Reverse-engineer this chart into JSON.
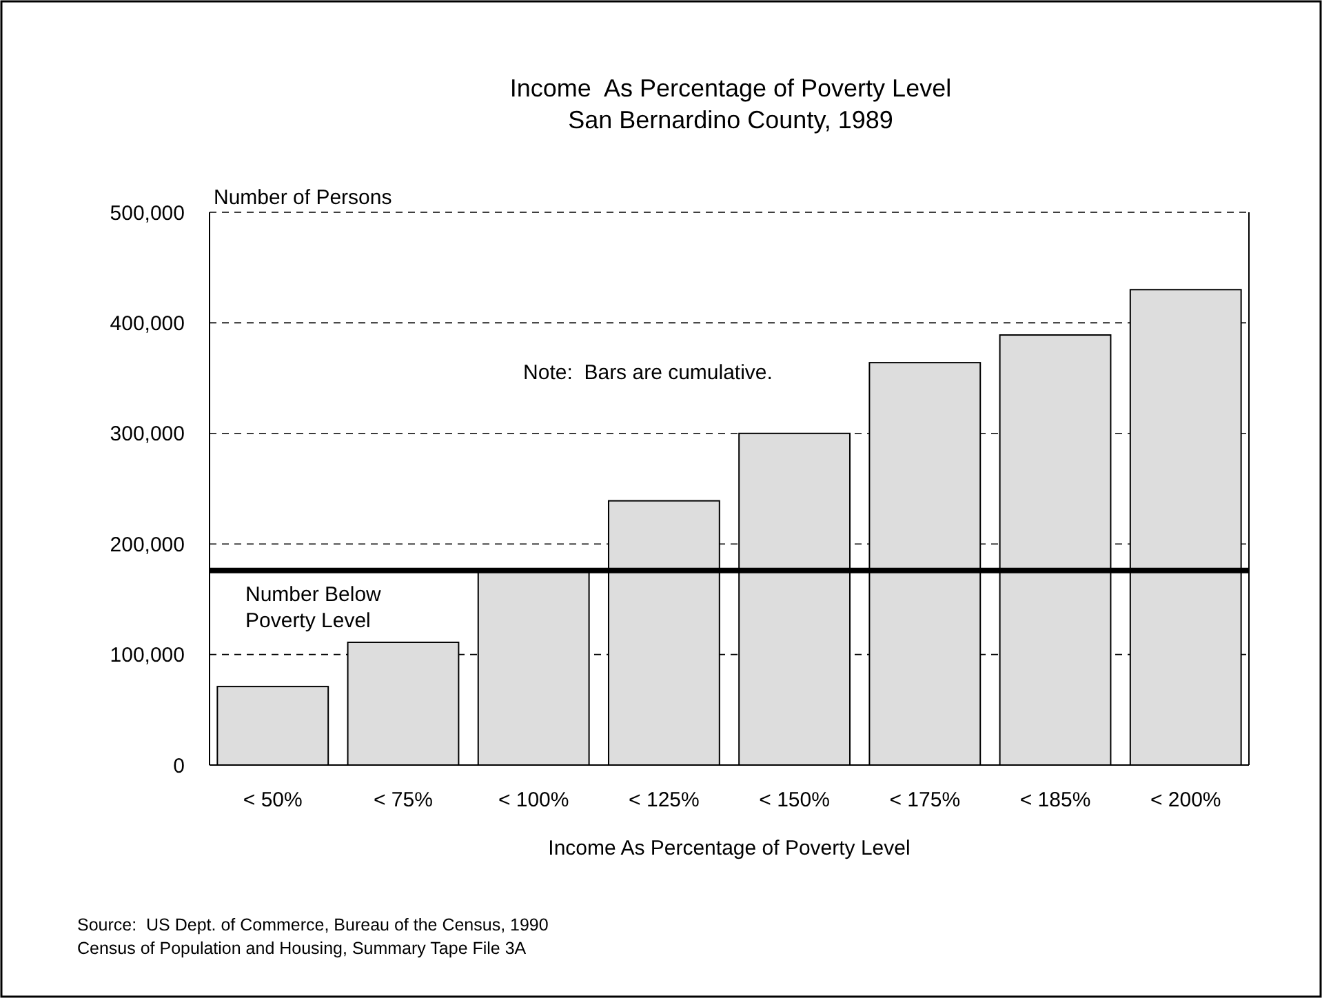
{
  "chart_data": {
    "type": "bar",
    "title": "Income  As Percentage of Poverty Level",
    "subtitle": "San Bernardino County, 1989",
    "xlabel": "Income As Percentage of Poverty Level",
    "ylabel": "Number of Persons",
    "categories": [
      "< 50%",
      "< 75%",
      "< 100%",
      "< 125%",
      "< 150%",
      "< 175%",
      "< 185%",
      "< 200%"
    ],
    "values": [
      71000,
      111000,
      176000,
      239000,
      300000,
      364000,
      389000,
      430000
    ],
    "color": "#dddddd",
    "ylim": [
      0,
      500000
    ],
    "yticks": [
      {
        "value": 0,
        "label": "0"
      },
      {
        "value": 100000,
        "label": "100,000"
      },
      {
        "value": 200000,
        "label": "200,000"
      },
      {
        "value": 300000,
        "label": "300,000"
      },
      {
        "value": 400000,
        "label": "400,000"
      },
      {
        "value": 500000,
        "label": "500,000"
      }
    ],
    "grid": "y",
    "ref_lines": [
      {
        "axis": "y",
        "value": 176000,
        "label": "Number Below Poverty Level",
        "color": "#000000"
      }
    ],
    "annotations": [
      "Note:  Bars are cumulative.",
      "Source:  US Dept. of Commerce, Bureau of the Census, 1990",
      "Census of Population and Housing, Summary Tape File 3A"
    ]
  }
}
